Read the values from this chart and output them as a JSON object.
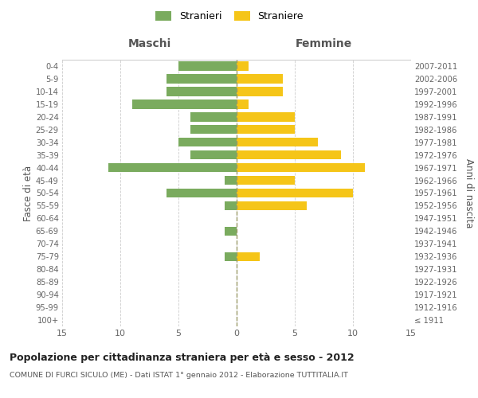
{
  "age_groups": [
    "100+",
    "95-99",
    "90-94",
    "85-89",
    "80-84",
    "75-79",
    "70-74",
    "65-69",
    "60-64",
    "55-59",
    "50-54",
    "45-49",
    "40-44",
    "35-39",
    "30-34",
    "25-29",
    "20-24",
    "15-19",
    "10-14",
    "5-9",
    "0-4"
  ],
  "birth_years": [
    "≤ 1911",
    "1912-1916",
    "1917-1921",
    "1922-1926",
    "1927-1931",
    "1932-1936",
    "1937-1941",
    "1942-1946",
    "1947-1951",
    "1952-1956",
    "1957-1961",
    "1962-1966",
    "1967-1971",
    "1972-1976",
    "1977-1981",
    "1982-1986",
    "1987-1991",
    "1992-1996",
    "1997-2001",
    "2002-2006",
    "2007-2011"
  ],
  "males": [
    0,
    0,
    0,
    0,
    0,
    1,
    0,
    1,
    0,
    1,
    6,
    1,
    11,
    4,
    5,
    4,
    4,
    9,
    6,
    6,
    5
  ],
  "females": [
    0,
    0,
    0,
    0,
    0,
    2,
    0,
    0,
    0,
    6,
    10,
    5,
    11,
    9,
    7,
    5,
    5,
    1,
    4,
    4,
    1
  ],
  "male_color": "#7aab5e",
  "female_color": "#f5c518",
  "background_color": "#ffffff",
  "grid_color": "#cccccc",
  "title": "Popolazione per cittadinanza straniera per età e sesso - 2012",
  "subtitle": "COMUNE DI FURCI SICULO (ME) - Dati ISTAT 1° gennaio 2012 - Elaborazione TUTTITALIA.IT",
  "ylabel_left": "Fasce di età",
  "ylabel_right": "Anni di nascita",
  "header_left": "Maschi",
  "header_right": "Femmine",
  "xlim": 15,
  "xtick_values": [
    -15,
    -10,
    -5,
    0,
    5,
    10,
    15
  ],
  "xtick_labels": [
    "15",
    "10",
    "5",
    "0",
    "5",
    "10",
    "15"
  ],
  "legend_labels": [
    "Stranieri",
    "Straniere"
  ],
  "center_line_color": "#999966"
}
